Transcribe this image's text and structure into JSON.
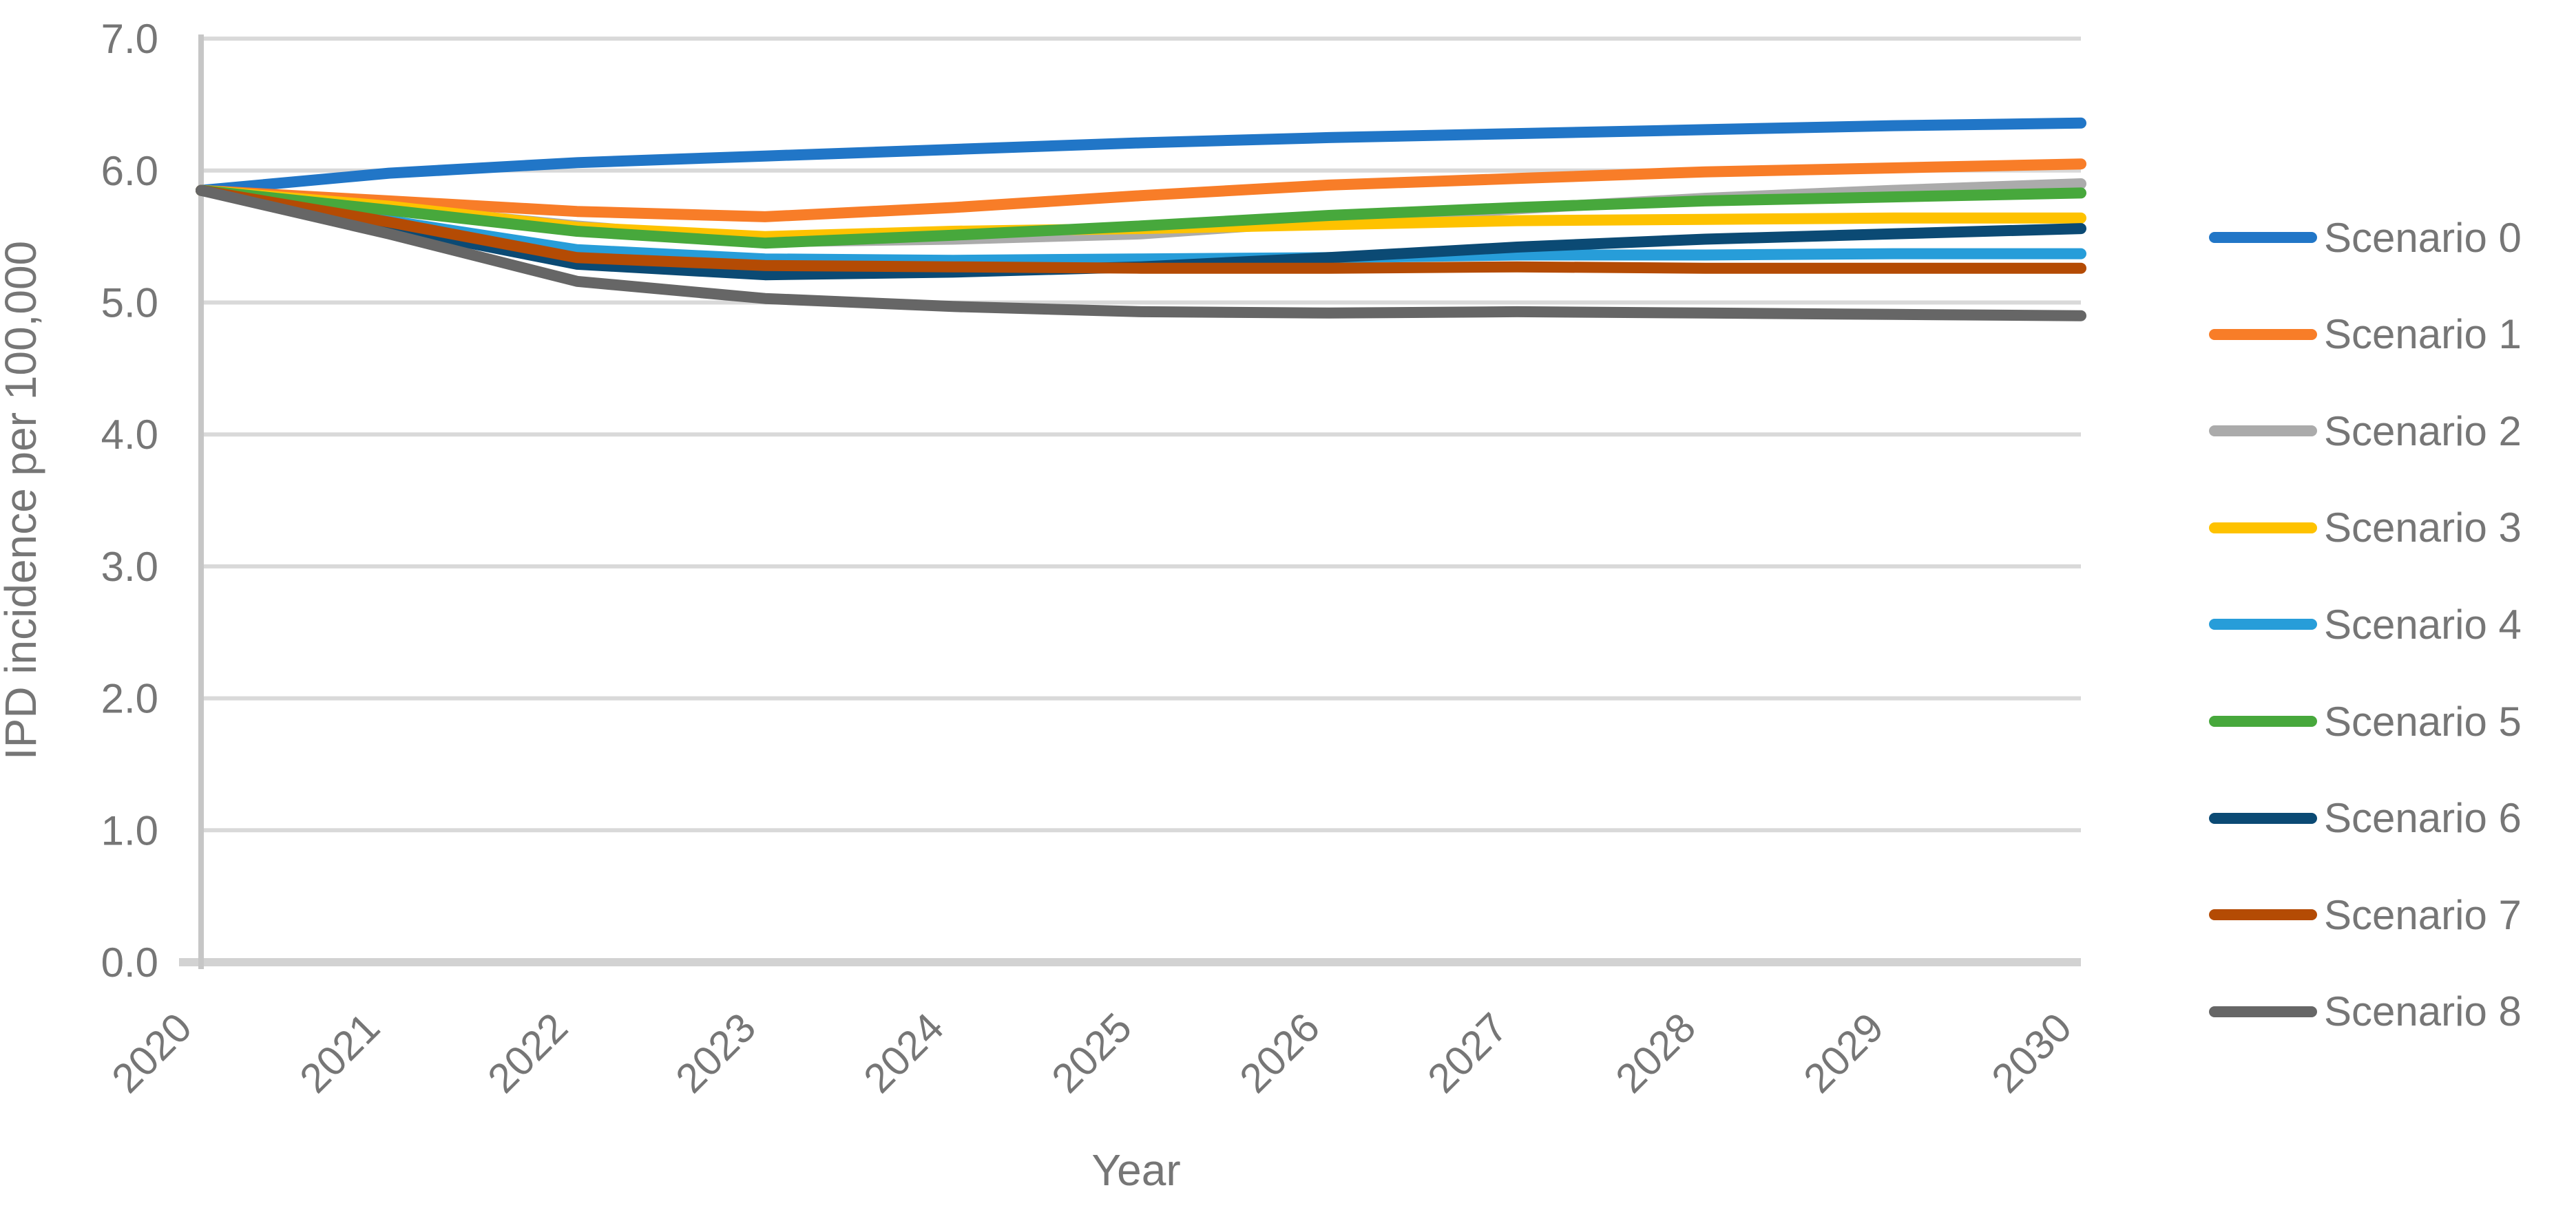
{
  "chart_data": {
    "type": "line",
    "title": "",
    "xlabel": "Year",
    "ylabel": "IPD incidence per 100,000",
    "x_categories": [
      "2020",
      "2021",
      "2022",
      "2023",
      "2024",
      "2025",
      "2026",
      "2027",
      "2028",
      "2029",
      "2030"
    ],
    "y_tick_labels": [
      "0.0",
      "1.0",
      "2.0",
      "3.0",
      "4.0",
      "5.0",
      "6.0",
      "7.0"
    ],
    "ylim": [
      0.0,
      7.0
    ],
    "y_major_unit": 1.0,
    "grid": "horizontal",
    "legend_position": "right",
    "series": [
      {
        "name": "Scenario 0",
        "color": "#2176C7",
        "values": [
          5.85,
          5.98,
          6.06,
          6.11,
          6.16,
          6.21,
          6.25,
          6.28,
          6.31,
          6.34,
          6.36
        ]
      },
      {
        "name": "Scenario 1",
        "color": "#F87D28",
        "values": [
          5.85,
          5.77,
          5.69,
          5.65,
          5.72,
          5.81,
          5.89,
          5.94,
          5.99,
          6.02,
          6.05
        ]
      },
      {
        "name": "Scenario 2",
        "color": "#ABABAB",
        "values": [
          5.85,
          5.72,
          5.58,
          5.46,
          5.48,
          5.52,
          5.62,
          5.71,
          5.79,
          5.85,
          5.9
        ]
      },
      {
        "name": "Scenario 3",
        "color": "#FEC200",
        "values": [
          5.85,
          5.73,
          5.57,
          5.5,
          5.54,
          5.56,
          5.59,
          5.62,
          5.63,
          5.64,
          5.64
        ]
      },
      {
        "name": "Scenario 4",
        "color": "#279DD9",
        "values": [
          5.85,
          5.62,
          5.4,
          5.33,
          5.32,
          5.33,
          5.34,
          5.36,
          5.36,
          5.37,
          5.37
        ]
      },
      {
        "name": "Scenario 5",
        "color": "#47A83C",
        "values": [
          5.85,
          5.7,
          5.54,
          5.45,
          5.51,
          5.58,
          5.66,
          5.72,
          5.77,
          5.8,
          5.83
        ]
      },
      {
        "name": "Scenario 6",
        "color": "#0B4A74",
        "values": [
          5.85,
          5.57,
          5.29,
          5.21,
          5.23,
          5.27,
          5.34,
          5.42,
          5.48,
          5.52,
          5.56
        ]
      },
      {
        "name": "Scenario 7",
        "color": "#B44B04",
        "values": [
          5.85,
          5.61,
          5.34,
          5.28,
          5.27,
          5.26,
          5.26,
          5.27,
          5.26,
          5.26,
          5.26
        ]
      },
      {
        "name": "Scenario 8",
        "color": "#666666",
        "values": [
          5.85,
          5.52,
          5.16,
          5.03,
          4.97,
          4.93,
          4.92,
          4.93,
          4.92,
          4.91,
          4.9
        ]
      }
    ]
  },
  "style": {
    "gridline_color": "#D9D9D9",
    "axis_line_color": "#C6C6C6",
    "bottom_axis_color": "#D2D2D2",
    "text_color": "#767676"
  }
}
